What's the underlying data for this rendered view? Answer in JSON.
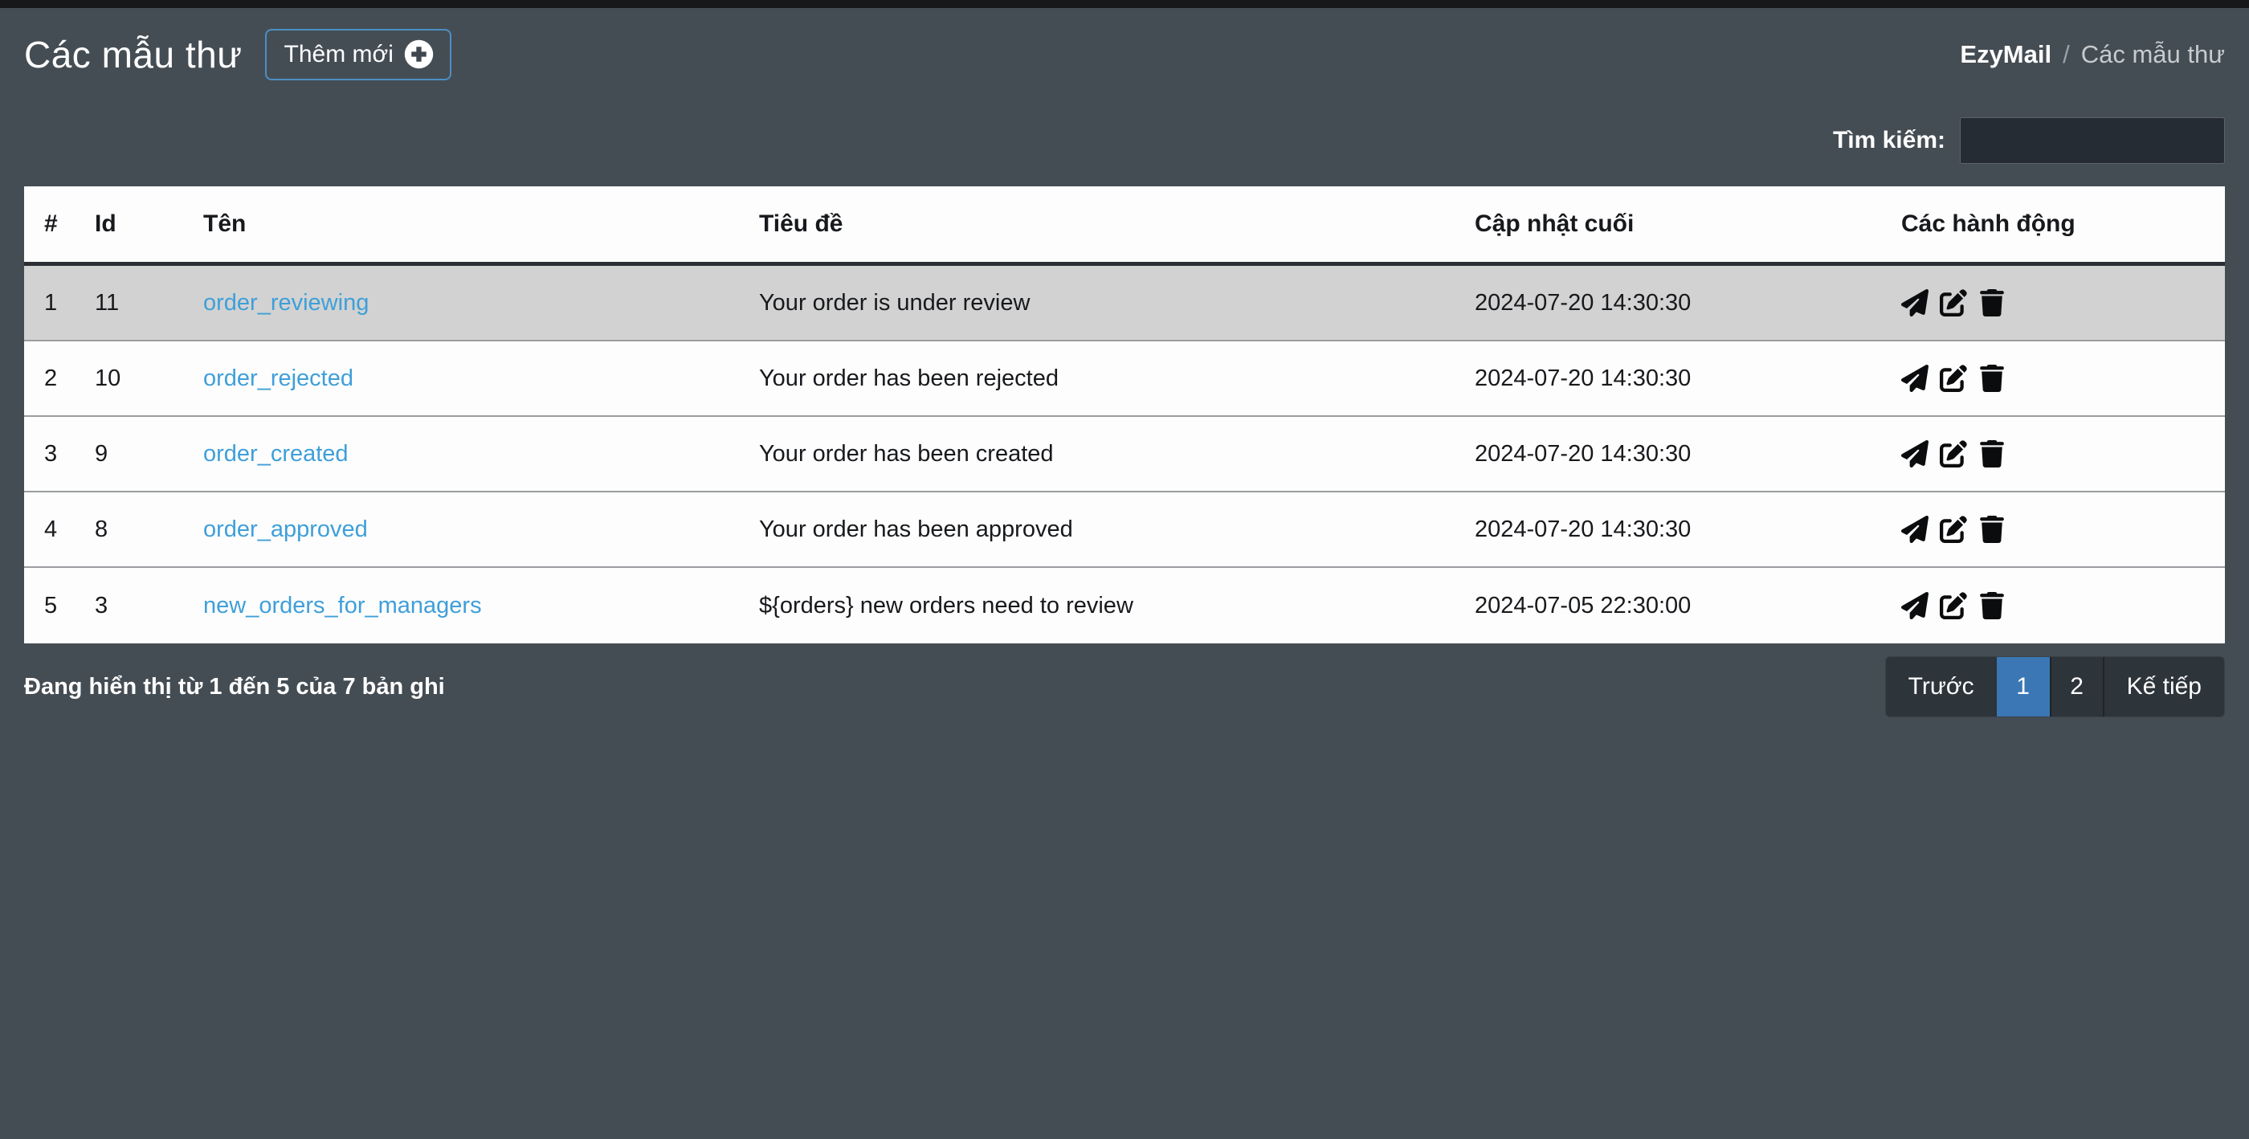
{
  "header": {
    "title": "Các mẫu thư",
    "add_button_label": "Thêm mới",
    "add_button_icon": "plus-circle-icon",
    "breadcrumb": {
      "app": "EzyMail",
      "separator": "/",
      "current": "Các mẫu thư"
    }
  },
  "search": {
    "label": "Tìm kiếm:",
    "value": "",
    "placeholder": ""
  },
  "table": {
    "headers": [
      "#",
      "Id",
      "Tên",
      "Tiêu đề",
      "Cập nhật cuối",
      "Các hành động"
    ],
    "rows": [
      {
        "index": "1",
        "id": "11",
        "name": "order_reviewing",
        "subject": "Your order is under review",
        "updated": "2024-07-20 14:30:30"
      },
      {
        "index": "2",
        "id": "10",
        "name": "order_rejected",
        "subject": "Your order has been rejected",
        "updated": "2024-07-20 14:30:30"
      },
      {
        "index": "3",
        "id": "9",
        "name": "order_created",
        "subject": "Your order has been created",
        "updated": "2024-07-20 14:30:30"
      },
      {
        "index": "4",
        "id": "8",
        "name": "order_approved",
        "subject": "Your order has been approved",
        "updated": "2024-07-20 14:30:30"
      },
      {
        "index": "5",
        "id": "3",
        "name": "new_orders_for_managers",
        "subject": "${orders} new orders need to review",
        "updated": "2024-07-05 22:30:00"
      }
    ],
    "row_action_icons": [
      "send-icon",
      "edit-icon",
      "trash-icon"
    ],
    "highlighted_row_index": 0
  },
  "footer": {
    "info": "Đang hiển thị từ 1 đến 5 của 7 bản ghi",
    "pagination": {
      "prev_label": "Trước",
      "pages": [
        "1",
        "2"
      ],
      "active_page": "1",
      "next_label": "Kế tiếp"
    }
  },
  "colors": {
    "background": "#454d54",
    "top_strip": "#16181a",
    "link_blue": "#3f9fd9",
    "button_border_blue": "#4b8fc4",
    "pagination_active_blue": "#3a77b4",
    "row_highlight_gray": "#d2d2d2",
    "table_background": "#fdfdfd",
    "search_input_background": "#262c33"
  }
}
